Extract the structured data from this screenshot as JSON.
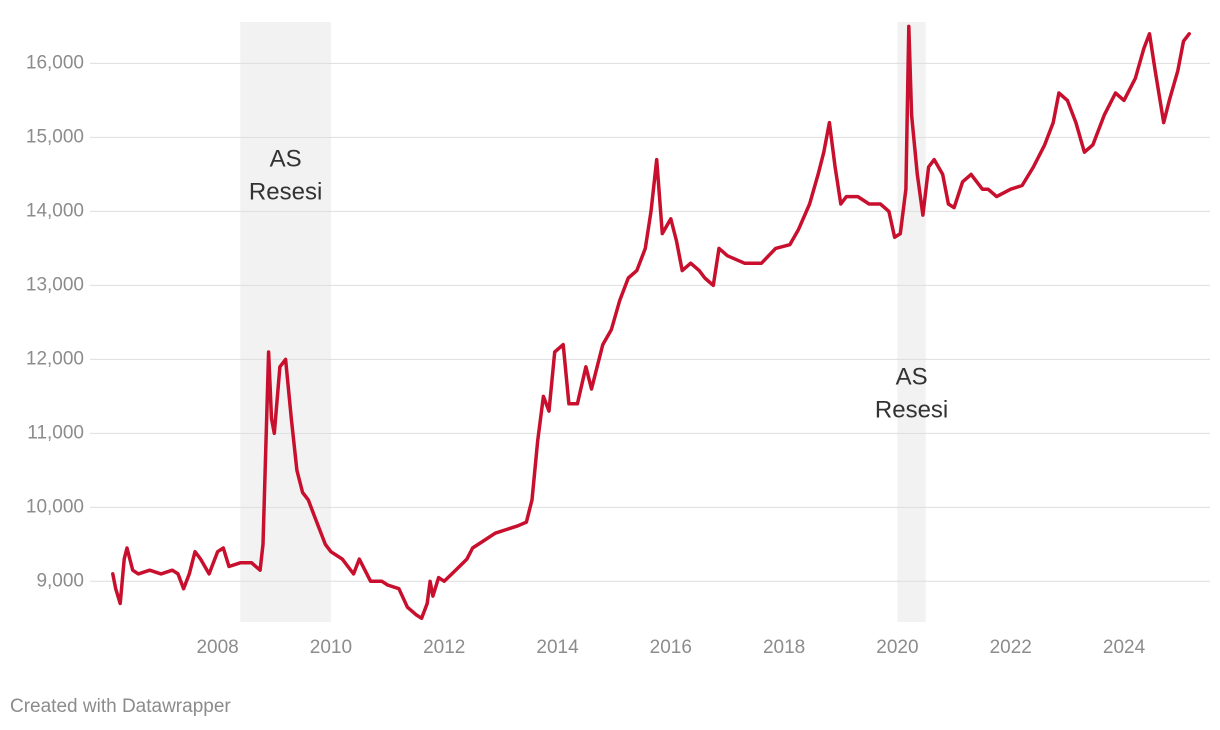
{
  "chart_data": {
    "type": "line",
    "x": [
      2006.15,
      2006.2,
      2006.28,
      2006.35,
      2006.4,
      2006.5,
      2006.6,
      2006.8,
      2007.0,
      2007.2,
      2007.3,
      2007.4,
      2007.5,
      2007.6,
      2007.7,
      2007.85,
      2008.0,
      2008.1,
      2008.2,
      2008.4,
      2008.6,
      2008.75,
      2008.8,
      2008.85,
      2008.9,
      2008.95,
      2009.0,
      2009.1,
      2009.2,
      2009.3,
      2009.4,
      2009.5,
      2009.6,
      2009.7,
      2009.8,
      2009.9,
      2010.0,
      2010.2,
      2010.3,
      2010.4,
      2010.5,
      2010.7,
      2010.9,
      2011.0,
      2011.2,
      2011.35,
      2011.5,
      2011.6,
      2011.7,
      2011.75,
      2011.8,
      2011.9,
      2012.0,
      2012.2,
      2012.4,
      2012.5,
      2012.7,
      2012.9,
      2013.1,
      2013.3,
      2013.45,
      2013.55,
      2013.65,
      2013.75,
      2013.85,
      2013.95,
      2014.1,
      2014.2,
      2014.35,
      2014.5,
      2014.6,
      2014.8,
      2014.95,
      2015.1,
      2015.25,
      2015.4,
      2015.55,
      2015.65,
      2015.75,
      2015.85,
      2016.0,
      2016.1,
      2016.2,
      2016.35,
      2016.5,
      2016.6,
      2016.75,
      2016.85,
      2017.0,
      2017.3,
      2017.6,
      2017.85,
      2018.1,
      2018.25,
      2018.45,
      2018.6,
      2018.7,
      2018.8,
      2018.9,
      2019.0,
      2019.1,
      2019.3,
      2019.5,
      2019.7,
      2019.85,
      2019.95,
      2020.05,
      2020.15,
      2020.2,
      2020.25,
      2020.35,
      2020.45,
      2020.55,
      2020.65,
      2020.8,
      2020.9,
      2021.0,
      2021.15,
      2021.3,
      2021.5,
      2021.6,
      2021.75,
      2022.0,
      2022.2,
      2022.4,
      2022.6,
      2022.75,
      2022.85,
      2023.0,
      2023.15,
      2023.3,
      2023.45,
      2023.65,
      2023.85,
      2024.0,
      2024.2,
      2024.35,
      2024.45,
      2024.55,
      2024.7,
      2024.8,
      2024.95,
      2025.05,
      2025.15
    ],
    "series": [
      {
        "color": "#c8102e",
        "values": [
          9100,
          8900,
          8700,
          9300,
          9450,
          9150,
          9100,
          9150,
          9100,
          9150,
          9100,
          8900,
          9100,
          9400,
          9300,
          9100,
          9400,
          9450,
          9200,
          9250,
          9250,
          9150,
          9500,
          10800,
          12100,
          11200,
          11000,
          11900,
          12000,
          11200,
          10500,
          10200,
          10100,
          9900,
          9700,
          9500,
          9400,
          9300,
          9200,
          9100,
          9300,
          9000,
          9000,
          8950,
          8900,
          8650,
          8550,
          8500,
          8700,
          9000,
          8800,
          9050,
          9000,
          9150,
          9300,
          9450,
          9550,
          9650,
          9700,
          9750,
          9800,
          10100,
          10900,
          11500,
          11300,
          12100,
          12200,
          11400,
          11400,
          11900,
          11600,
          12200,
          12400,
          12800,
          13100,
          13200,
          13500,
          14000,
          14700,
          13700,
          13900,
          13600,
          13200,
          13300,
          13200,
          13100,
          13000,
          13500,
          13400,
          13300,
          13300,
          13500,
          13550,
          13750,
          14100,
          14500,
          14800,
          15200,
          14600,
          14100,
          14200,
          14200,
          14100,
          14100,
          14000,
          13650,
          13700,
          14300,
          16500,
          15300,
          14500,
          13950,
          14600,
          14700,
          14500,
          14100,
          14050,
          14400,
          14500,
          14300,
          14300,
          14200,
          14300,
          14350,
          14600,
          14900,
          15200,
          15600,
          15500,
          15200,
          14800,
          14900,
          15300,
          15600,
          15500,
          15800,
          16200,
          16400,
          15900,
          15200,
          15500,
          15900,
          16300,
          16400
        ]
      }
    ],
    "xlim": [
      2006.1,
      2025.2
    ],
    "xticks": [
      2008,
      2010,
      2012,
      2014,
      2016,
      2018,
      2020,
      2022,
      2024
    ],
    "ylim": [
      8450,
      16560
    ],
    "yticks": [
      {
        "value": 9000,
        "label": "9,000"
      },
      {
        "value": 10000,
        "label": "10,000"
      },
      {
        "value": 11000,
        "label": "11,000"
      },
      {
        "value": 12000,
        "label": "12,000"
      },
      {
        "value": 13000,
        "label": "13,000"
      },
      {
        "value": 14000,
        "label": "14,000"
      },
      {
        "value": 15000,
        "label": "15,000"
      },
      {
        "value": 16000,
        "label": "16,000"
      }
    ],
    "grid": true,
    "shaded_regions": [
      {
        "start": 2008.4,
        "end": 2010.0,
        "label": [
          "AS",
          "Resesi"
        ]
      },
      {
        "start": 2020.0,
        "end": 2020.5,
        "label": [
          "AS",
          "Resesi"
        ]
      }
    ],
    "source": "Created with Datawrapper"
  }
}
